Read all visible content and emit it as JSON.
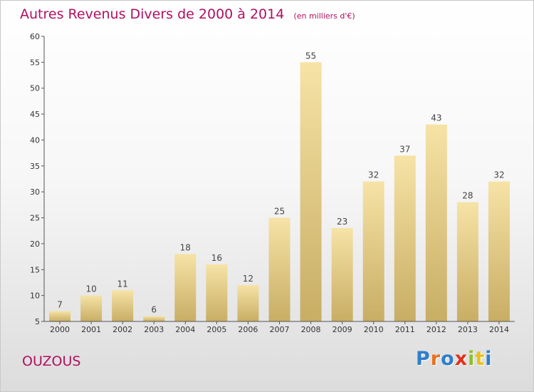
{
  "title": "Autres Revenus Divers de 2000 à 2014",
  "subtitle": "(en milliers d'€)",
  "commune": "OUZOUS",
  "brand": {
    "letters": [
      "P",
      "r",
      "o",
      "x",
      "i",
      "t",
      "i"
    ],
    "colors": [
      "#2e7fc9",
      "#e8721c",
      "#2e7fc9",
      "#e0301e",
      "#8fbf2a",
      "#e8c11c",
      "#2e7fc9"
    ]
  },
  "colors": {
    "accent": "#b01060",
    "bar_light": "#f6e3a6",
    "bar_dark": "#c8ad64"
  },
  "chart_data": {
    "type": "bar",
    "categories": [
      "2000",
      "2001",
      "2002",
      "2003",
      "2004",
      "2005",
      "2006",
      "2007",
      "2008",
      "2009",
      "2010",
      "2011",
      "2012",
      "2013",
      "2014"
    ],
    "values": [
      7,
      10,
      11,
      6,
      18,
      16,
      12,
      25,
      55,
      23,
      32,
      37,
      43,
      28,
      32
    ],
    "title": "Autres Revenus Divers de 2000 à 2014",
    "xlabel": "",
    "ylabel": "",
    "ylim": [
      5,
      60
    ],
    "yticks": [
      5,
      10,
      15,
      20,
      25,
      30,
      35,
      40,
      45,
      50,
      55,
      60
    ],
    "grid": false,
    "legend": "none"
  }
}
